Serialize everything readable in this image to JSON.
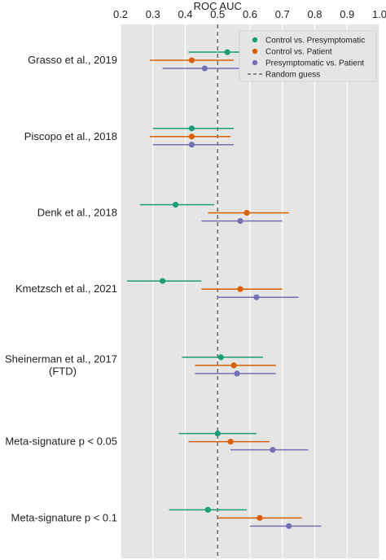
{
  "chart_data": {
    "type": "scatter",
    "subtype": "forest-plot",
    "xlabel": "ROC AUC",
    "xlim": [
      0.2,
      1.0
    ],
    "xticks": [
      "0.2",
      "0.3",
      "0.4",
      "0.5",
      "0.6",
      "0.7",
      "0.8",
      "0.9",
      "1.0"
    ],
    "x_axis_position": "top",
    "grid": true,
    "legend_position": "top-right",
    "reference_line": {
      "name": "Random guess",
      "x": 0.5,
      "style": "dashed",
      "color": "#555555"
    },
    "categories": [
      [
        "Grasso et al., 2019"
      ],
      [
        "Piscopo et al., 2018"
      ],
      [
        "Denk et al., 2018"
      ],
      [
        "Kmetzsch et al., 2021"
      ],
      [
        "Sheinerman et al., 2017",
        "(FTD)"
      ],
      [
        "Meta-signature p < 0.05"
      ],
      [
        "Meta-signature p < 0.1"
      ]
    ],
    "series": [
      {
        "name": "Control vs. Presymptomatic",
        "color": "#1b9e77",
        "values": [
          0.53,
          0.42,
          0.37,
          0.33,
          0.51,
          0.5,
          0.47
        ],
        "lower": [
          0.41,
          0.3,
          0.26,
          0.22,
          0.39,
          0.38,
          0.35
        ],
        "upper": [
          0.65,
          0.55,
          0.49,
          0.45,
          0.64,
          0.62,
          0.59
        ]
      },
      {
        "name": "Control vs. Patient",
        "color": "#d95f02",
        "values": [
          0.42,
          0.42,
          0.59,
          0.57,
          0.55,
          0.54,
          0.63
        ],
        "lower": [
          0.29,
          0.29,
          0.47,
          0.45,
          0.43,
          0.41,
          0.5
        ],
        "upper": [
          0.55,
          0.54,
          0.72,
          0.7,
          0.68,
          0.66,
          0.76
        ]
      },
      {
        "name": "Presymptomatic vs. Patient",
        "color": "#7570b3",
        "values": [
          0.46,
          0.42,
          0.57,
          0.62,
          0.56,
          0.67,
          0.72
        ],
        "lower": [
          0.33,
          0.3,
          0.45,
          0.5,
          0.43,
          0.54,
          0.6
        ],
        "upper": [
          0.59,
          0.55,
          0.7,
          0.75,
          0.68,
          0.78,
          0.82
        ]
      }
    ]
  }
}
